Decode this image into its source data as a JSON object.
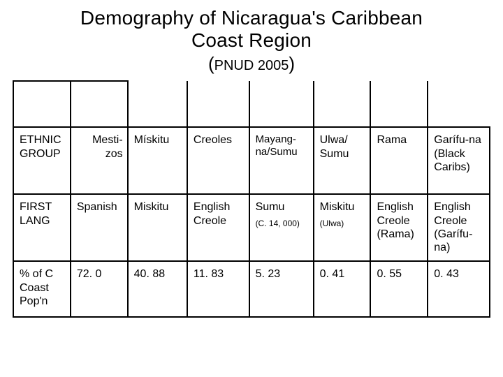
{
  "title_line1": "Demography of Nicaragua's Caribbean",
  "title_line2": "Coast Region",
  "subtitle_source": "PNUD 2005",
  "table": {
    "header_blank_cols": 2,
    "rows": {
      "ethnic": {
        "label": "ETHNIC GROUP",
        "cells": [
          "Mesti-zos",
          "Mískitu",
          "Creoles",
          "Mayang-na/Sumu",
          "Ulwa/ Sumu",
          "Rama",
          "Garífu-na (Black Caribs)"
        ]
      },
      "firstlang": {
        "label": "FIRST LANG",
        "cells": [
          "Spanish",
          "Miskitu",
          "English Creole",
          "Sumu",
          "Miskitu",
          "English Creole (Rama)",
          "English Creole (Garífu-na)"
        ],
        "cell3_sub": "(C. 14, 000)",
        "cell4_sub": "(Ulwa)"
      },
      "pct": {
        "label": "% of C Coast Pop'n",
        "cells": [
          "72. 0",
          "40. 88",
          "11. 83",
          "5. 23",
          "0. 41",
          "0. 55",
          "0. 43"
        ]
      }
    }
  },
  "style": {
    "background_color": "#ffffff",
    "text_color": "#000000",
    "border_color": "#000000",
    "title_fontsize": 28,
    "subtitle_fontsize": 24,
    "cell_fontsize": 16,
    "subnote_fontsize": 12,
    "font_family": "Arial"
  }
}
